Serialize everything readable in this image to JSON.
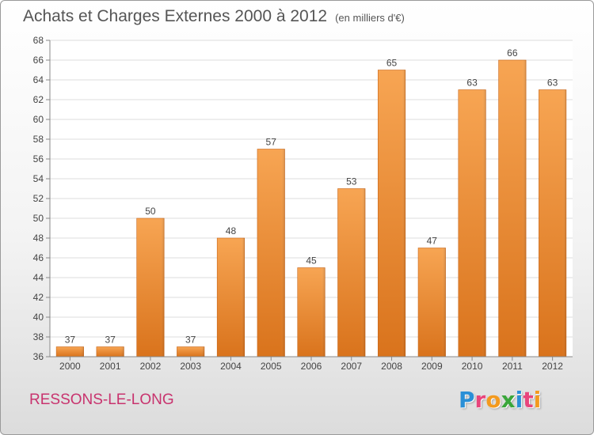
{
  "title": "Achats et Charges Externes 2000 à 2012",
  "subtitle": "(en milliers d'€)",
  "location": "RESSONS-LE-LONG",
  "logo": {
    "letters": [
      "P",
      "r",
      "o",
      "x",
      "i",
      "t",
      "i"
    ],
    "colors": [
      "#2a8fd6",
      "#e8457c",
      "#f39a1e",
      "#3aa63a",
      "#2a8fd6",
      "#e8457c",
      "#f39a1e"
    ]
  },
  "chart_data": {
    "type": "bar",
    "categories": [
      "2000",
      "2001",
      "2002",
      "2003",
      "2004",
      "2005",
      "2006",
      "2007",
      "2008",
      "2009",
      "2010",
      "2011",
      "2012"
    ],
    "values": [
      37,
      37,
      50,
      37,
      48,
      57,
      45,
      53,
      65,
      47,
      63,
      66,
      63
    ],
    "ylim": [
      36,
      68
    ],
    "yticks": [
      36,
      38,
      40,
      42,
      44,
      46,
      48,
      50,
      52,
      54,
      56,
      58,
      60,
      62,
      64,
      66,
      68
    ],
    "grid": true,
    "bar_color": "#f08a2c"
  }
}
